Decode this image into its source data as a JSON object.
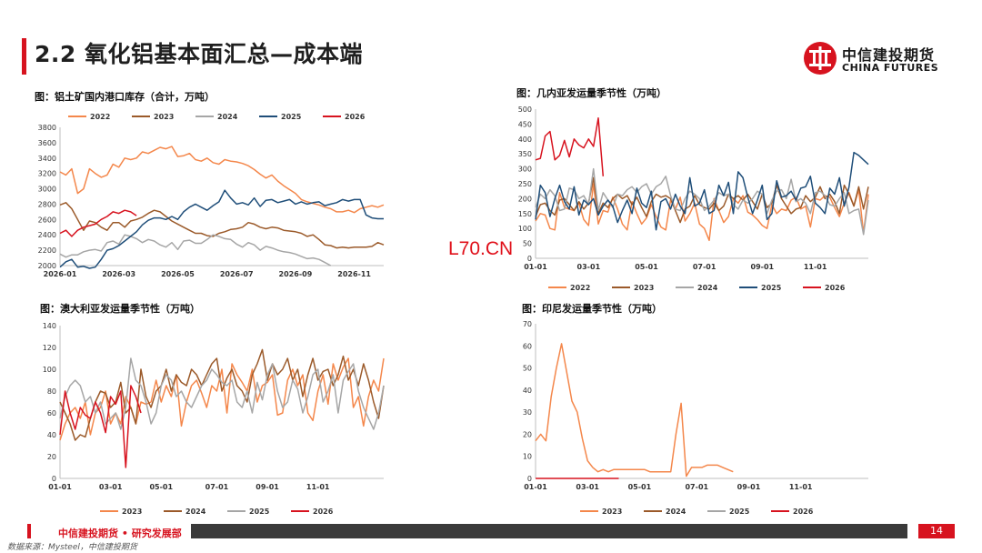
{
  "header": {
    "title": "2.2 氧化铝基本面汇总—成本端"
  },
  "logo": {
    "cn": "中信建投期货",
    "en": "CHINA FUTURES"
  },
  "watermark": "L70.CN",
  "footer": {
    "org": "中信建投期货 • 研究发展部",
    "page": "14",
    "source": "数据来源：Mysteel，中信建投期货"
  },
  "colors": {
    "y2022": "#f4874b",
    "y2023": "#9b5a2a",
    "y2024": "#a6a6a6",
    "y2025": "#1f4e79",
    "y2026": "#d7131f"
  },
  "chart_data": [
    {
      "type": "line",
      "title": "图：铝土矿国内港口库存（合计，万吨）",
      "xlabels": [
        "2026-01",
        "2026-03",
        "2026-05",
        "2026-07",
        "2026-09",
        "2026-11"
      ],
      "ylim": [
        2000,
        3800
      ],
      "ystep": 200,
      "series": [
        {
          "name": "2022",
          "color": "#f4874b",
          "values": [
            3220,
            3180,
            3260,
            2940,
            3000,
            3260,
            3200,
            3150,
            3180,
            3320,
            3280,
            3400,
            3380,
            3400,
            3480,
            3460,
            3500,
            3540,
            3520,
            3550,
            3420,
            3430,
            3460,
            3380,
            3360,
            3400,
            3340,
            3320,
            3380,
            3360,
            3350,
            3330,
            3300,
            3250,
            3190,
            3140,
            3180,
            3100,
            3040,
            2990,
            2940,
            2860,
            2830,
            2810,
            2790,
            2760,
            2740,
            2700,
            2700,
            2720,
            2690,
            2740,
            2760,
            2780,
            2760,
            2790
          ]
        },
        {
          "name": "2023",
          "color": "#9b5a2a",
          "values": [
            2790,
            2820,
            2740,
            2600,
            2460,
            2580,
            2560,
            2500,
            2460,
            2560,
            2560,
            2500,
            2580,
            2600,
            2630,
            2680,
            2720,
            2700,
            2640,
            2580,
            2540,
            2500,
            2460,
            2420,
            2420,
            2390,
            2380,
            2420,
            2440,
            2470,
            2480,
            2500,
            2560,
            2540,
            2500,
            2480,
            2500,
            2490,
            2460,
            2450,
            2440,
            2420,
            2380,
            2400,
            2340,
            2270,
            2260,
            2230,
            2240,
            2230,
            2240,
            2240,
            2240,
            2250,
            2300,
            2270
          ]
        },
        {
          "name": "2024",
          "color": "#a6a6a6",
          "values": [
            2150,
            2110,
            2140,
            2140,
            2180,
            2200,
            2210,
            2190,
            2300,
            2320,
            2280,
            2400,
            2380,
            2350,
            2300,
            2340,
            2320,
            2270,
            2240,
            2300,
            2210,
            2320,
            2330,
            2290,
            2290,
            2340,
            2400,
            2380,
            2350,
            2340,
            2280,
            2240,
            2300,
            2270,
            2200,
            2250,
            2230,
            2200,
            2180,
            2170,
            2150,
            2120,
            2090,
            2100,
            2080,
            2040,
            2000
          ]
        },
        {
          "name": "2025",
          "color": "#1f4e79",
          "values": [
            1980,
            2050,
            2080,
            1980,
            1990,
            1960,
            1980,
            2080,
            2200,
            2220,
            2260,
            2320,
            2380,
            2440,
            2530,
            2590,
            2620,
            2620,
            2600,
            2640,
            2600,
            2700,
            2760,
            2800,
            2760,
            2720,
            2780,
            2830,
            2980,
            2880,
            2800,
            2820,
            2790,
            2880,
            2770,
            2850,
            2860,
            2820,
            2840,
            2860,
            2800,
            2830,
            2800,
            2820,
            2830,
            2780,
            2800,
            2820,
            2860,
            2840,
            2860,
            2860,
            2660,
            2620,
            2610,
            2610
          ]
        },
        {
          "name": "2026",
          "color": "#d7131f",
          "values": [
            2420,
            2460,
            2380,
            2460,
            2500,
            2520,
            2540,
            2600,
            2640,
            2700,
            2680,
            2720,
            2700,
            2650
          ]
        }
      ]
    },
    {
      "type": "line",
      "title": "图：几内亚发运量季节性（万吨）",
      "xlabels": [
        "01-01",
        "03-01",
        "05-01",
        "07-01",
        "09-01",
        "11-01"
      ],
      "ylim": [
        0,
        500
      ],
      "ystep": 50,
      "series": [
        {
          "name": "2022",
          "color": "#f4874b",
          "values": [
            125,
            150,
            145,
            100,
            95,
            220,
            170,
            165,
            160,
            185,
            130,
            110,
            250,
            115,
            160,
            155,
            205,
            165,
            115,
            95,
            190,
            150,
            115,
            135,
            180,
            140,
            105,
            95,
            195,
            165,
            205,
            125,
            150,
            185,
            115,
            100,
            60,
            200,
            160,
            120,
            140,
            200,
            185,
            210,
            155,
            145,
            130,
            110,
            100,
            180,
            150,
            165,
            160,
            195,
            205,
            165,
            175,
            105,
            200,
            195,
            210,
            205,
            170,
            140,
            185,
            220,
            175,
            230,
            85,
            215
          ]
        },
        {
          "name": "2023",
          "color": "#9b5a2a",
          "values": [
            140,
            180,
            185,
            160,
            145,
            195,
            200,
            180,
            160,
            190,
            165,
            185,
            270,
            150,
            185,
            170,
            200,
            215,
            200,
            210,
            180,
            205,
            170,
            140,
            190,
            215,
            205,
            210,
            200,
            160,
            120,
            165,
            175,
            210,
            180,
            170,
            165,
            185,
            160,
            175,
            215,
            200,
            210,
            195,
            215,
            190,
            165,
            215,
            170,
            185,
            245,
            200,
            175,
            150,
            165,
            170,
            210,
            190,
            205,
            240,
            200,
            215,
            190,
            150,
            245,
            215,
            175,
            240,
            165,
            240
          ]
        },
        {
          "name": "2024",
          "color": "#a6a6a6",
          "values": [
            170,
            215,
            200,
            230,
            210,
            160,
            165,
            235,
            230,
            200,
            210,
            180,
            300,
            160,
            220,
            195,
            170,
            215,
            210,
            230,
            240,
            220,
            240,
            250,
            215,
            240,
            250,
            275,
            210,
            165,
            160,
            200,
            225,
            215,
            200,
            160,
            175,
            195,
            220,
            210,
            215,
            180,
            165,
            195,
            185,
            200,
            225,
            215,
            150,
            195,
            225,
            230,
            200,
            265,
            190,
            200,
            185,
            150,
            220,
            225,
            210,
            180,
            175,
            200,
            220,
            150,
            160,
            165,
            80,
            195
          ]
        },
        {
          "name": "2025",
          "color": "#1f4e79",
          "values": [
            130,
            245,
            220,
            140,
            200,
            245,
            190,
            165,
            240,
            145,
            195,
            180,
            200,
            145,
            175,
            195,
            175,
            120,
            160,
            195,
            150,
            235,
            185,
            170,
            225,
            95,
            190,
            200,
            165,
            215,
            175,
            150,
            270,
            175,
            185,
            230,
            150,
            160,
            245,
            210,
            255,
            150,
            290,
            270,
            205,
            150,
            195,
            245,
            130,
            150,
            260,
            205,
            210,
            225,
            195,
            235,
            240,
            275,
            185,
            170,
            150,
            235,
            215,
            270,
            175,
            240,
            355,
            345,
            330,
            315
          ]
        },
        {
          "name": "2026",
          "color": "#d7131f",
          "values": [
            330,
            335,
            410,
            425,
            330,
            345,
            395,
            340,
            400,
            380,
            370,
            400,
            375,
            470,
            275
          ]
        }
      ]
    },
    {
      "type": "line",
      "title": "图：澳大利亚发运量季节性（万吨）",
      "xlabels": [
        "01-01",
        "03-01",
        "05-01",
        "07-01",
        "09-01",
        "11-01"
      ],
      "ylim": [
        0,
        140
      ],
      "ystep": 20,
      "series": [
        {
          "name": "2023",
          "color": "#f4874b",
          "values": [
            35,
            50,
            60,
            65,
            55,
            70,
            40,
            60,
            65,
            80,
            50,
            60,
            50,
            75,
            65,
            50,
            70,
            68,
            70,
            90,
            70,
            85,
            75,
            95,
            48,
            70,
            85,
            90,
            78,
            65,
            85,
            80,
            100,
            60,
            105,
            95,
            88,
            80,
            100,
            70,
            85,
            88,
            95,
            58,
            60,
            90,
            100,
            85,
            95,
            60,
            53,
            80,
            95,
            68,
            105,
            90,
            102,
            110,
            65,
            75,
            48,
            75,
            90,
            80,
            110
          ]
        },
        {
          "name": "2024",
          "color": "#9b5a2a",
          "values": [
            70,
            60,
            50,
            35,
            40,
            38,
            55,
            70,
            80,
            78,
            65,
            70,
            88,
            60,
            65,
            50,
            100,
            75,
            65,
            80,
            85,
            100,
            80,
            95,
            88,
            85,
            100,
            95,
            85,
            95,
            105,
            110,
            80,
            92,
            100,
            85,
            80,
            70,
            95,
            105,
            118,
            90,
            105,
            95,
            100,
            110,
            90,
            100,
            75,
            95,
            110,
            90,
            98,
            100,
            85,
            95,
            112,
            90,
            100,
            85,
            105,
            90,
            70,
            55,
            85
          ]
        },
        {
          "name": "2025",
          "color": "#a6a6a6",
          "values": [
            55,
            75,
            85,
            90,
            85,
            70,
            75,
            60,
            70,
            50,
            55,
            60,
            45,
            65,
            110,
            90,
            85,
            70,
            50,
            60,
            85,
            95,
            90,
            75,
            80,
            70,
            65,
            75,
            85,
            90,
            100,
            95,
            88,
            85,
            90,
            70,
            65,
            80,
            60,
            88,
            72,
            95,
            105,
            80,
            65,
            70,
            90,
            82,
            60,
            75,
            95,
            100,
            70,
            80,
            95,
            60,
            90,
            98,
            105,
            80,
            65,
            55,
            45,
            60,
            85
          ]
        },
        {
          "name": "2026",
          "color": "#d7131f",
          "values": [
            40,
            80,
            60,
            45,
            65,
            58,
            55,
            70,
            60,
            42,
            75,
            68,
            80,
            10,
            85,
            75,
            60
          ]
        }
      ]
    },
    {
      "type": "line",
      "title": "图：印尼发运量季节性（万吨）",
      "xlabels": [
        "01-01",
        "03-01",
        "05-01",
        "07-01",
        "09-01",
        "11-01"
      ],
      "ylim": [
        0,
        70
      ],
      "ystep": 10,
      "series": [
        {
          "name": "2023",
          "color": "#f4874b",
          "values": [
            17,
            20,
            17,
            37,
            50,
            61,
            48,
            35,
            30,
            18,
            8,
            5,
            3,
            4,
            3,
            4,
            4,
            4,
            4,
            4,
            4,
            4,
            3,
            3,
            3,
            3,
            3,
            20,
            34,
            1,
            5,
            5,
            5,
            6,
            6,
            6,
            5,
            4,
            3
          ]
        },
        {
          "name": "2024",
          "color": "#9b5a2a",
          "values": []
        },
        {
          "name": "2025",
          "color": "#a6a6a6",
          "values": []
        },
        {
          "name": "2026",
          "color": "#d7131f",
          "values": [
            0,
            0,
            0,
            0,
            0,
            0,
            0,
            0,
            0,
            0,
            0,
            0,
            0,
            0,
            0,
            0,
            0
          ]
        }
      ]
    }
  ]
}
